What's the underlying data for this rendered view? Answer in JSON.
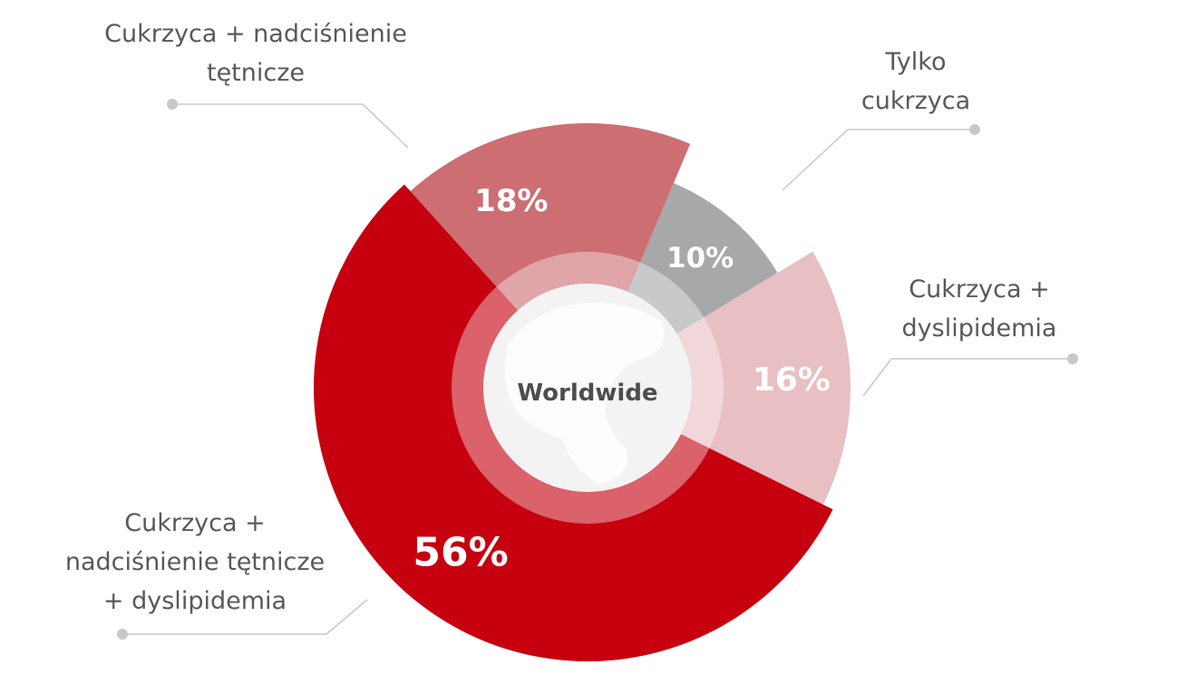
{
  "chart_data": {
    "type": "pie",
    "variant": "donut with varying radii",
    "center_label": "Worldwide",
    "slices": [
      {
        "label": [
          "Cukrzyca + nadciśnienie",
          "tętnicze"
        ],
        "value": 18,
        "value_label": "18%",
        "color": "#cd6e73"
      },
      {
        "label": [
          "Tylko",
          "cukrzyca"
        ],
        "value": 10,
        "value_label": "10%",
        "color": "#a7a8aa"
      },
      {
        "label": [
          "Cukrzyca +",
          "dyslipidemia"
        ],
        "value": 16,
        "value_label": "16%",
        "color": "#e8bfc2"
      },
      {
        "label": [
          "Cukrzyca +",
          "nadciśnienie tętnicze",
          "+ dyslipidemia"
        ],
        "value": 56,
        "value_label": "56%",
        "color": "#c6000f"
      }
    ]
  }
}
